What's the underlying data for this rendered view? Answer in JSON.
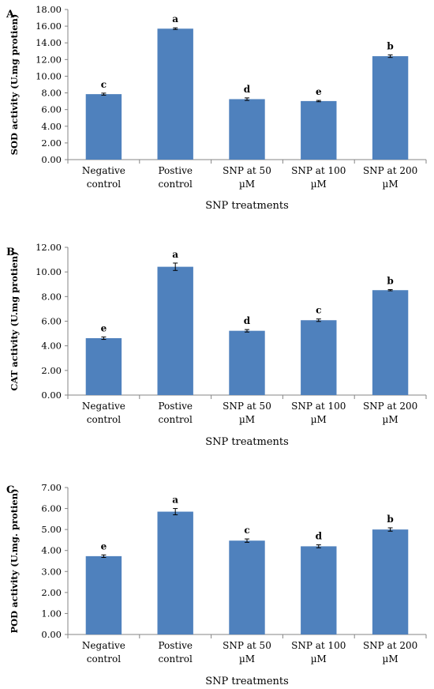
{
  "chart_data": [
    {
      "type": "bar",
      "panel": "A",
      "ylabel": "SOD activity (U.mg protien)",
      "xlabel": "SNP treatments",
      "categories": [
        [
          "Negative",
          "control"
        ],
        [
          "Postive",
          "control"
        ],
        [
          "SNP at 50",
          "µM"
        ],
        [
          "SNP at 100",
          "µM"
        ],
        [
          "SNP at 200",
          "µM"
        ]
      ],
      "values": [
        7.85,
        15.7,
        7.25,
        7.02,
        12.4
      ],
      "errors": [
        0.12,
        0.1,
        0.15,
        0.08,
        0.15
      ],
      "letters": [
        "c",
        "a",
        "d",
        "e",
        "b"
      ],
      "ylim": [
        0,
        18
      ],
      "yticks": [
        "0.00",
        "2.00",
        "4.00",
        "6.00",
        "8.00",
        "10.00",
        "12.00",
        "14.00",
        "16.00",
        "18.00"
      ],
      "bar_color": "#4f81bd"
    },
    {
      "type": "bar",
      "panel": "B",
      "ylabel": "CAT activity  (U.mg protien)",
      "xlabel": "SNP treatments",
      "categories": [
        [
          "Negative",
          "control"
        ],
        [
          "Postive",
          "control"
        ],
        [
          "SNP at 50",
          "µM"
        ],
        [
          "SNP at 100",
          "µM"
        ],
        [
          "SNP at 200",
          "µM"
        ]
      ],
      "values": [
        4.62,
        10.42,
        5.22,
        6.08,
        8.52
      ],
      "errors": [
        0.1,
        0.3,
        0.1,
        0.1,
        0.05
      ],
      "letters": [
        "e",
        "a",
        "d",
        "c",
        "b"
      ],
      "ylim": [
        0,
        12
      ],
      "yticks": [
        "0.00",
        "2.00",
        "4.00",
        "6.00",
        "8.00",
        "10.00",
        "12.00"
      ],
      "bar_color": "#4f81bd"
    },
    {
      "type": "bar",
      "panel": "C",
      "ylabel": "POD activity  (U.mg. protien)",
      "xlabel": "SNP treatments",
      "categories": [
        [
          "Negative",
          "control"
        ],
        [
          "Postive",
          "control"
        ],
        [
          "SNP at 50",
          "µM"
        ],
        [
          "SNP at 100",
          "µM"
        ],
        [
          "SNP at 200",
          "µM"
        ]
      ],
      "values": [
        3.73,
        5.85,
        4.47,
        4.2,
        5.0
      ],
      "errors": [
        0.06,
        0.15,
        0.08,
        0.07,
        0.08
      ],
      "letters": [
        "e",
        "a",
        "c",
        "d",
        "b"
      ],
      "ylim": [
        0,
        7
      ],
      "yticks": [
        "0.00",
        "1.00",
        "2.00",
        "3.00",
        "4.00",
        "5.00",
        "6.00",
        "7.00"
      ],
      "bar_color": "#4f81bd"
    }
  ]
}
